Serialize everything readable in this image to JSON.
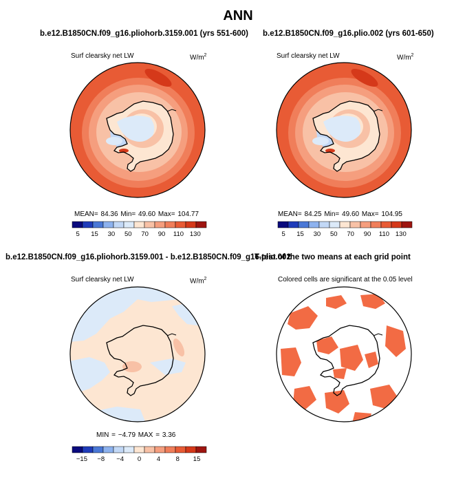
{
  "title": "ANN",
  "colors": {
    "c1": "#0a0a7d",
    "c2": "#1f3cba",
    "c3": "#4a78d6",
    "c4": "#8db2ee",
    "c5": "#c2d8f6",
    "c6": "#dceaf9",
    "c7": "#fde6d2",
    "c8": "#f8c1a6",
    "c9": "#f59e7e",
    "c10": "#f07e5a",
    "c11": "#e85b35",
    "c12": "#d5391a",
    "c13": "#9e1510",
    "sig": "#f26b44"
  },
  "panels": [
    {
      "title": "b.e12.B1850CN.f09_g16.pliohorb.3159.001 (yrs 551-600)",
      "variable": "Surf clearsky net LW",
      "units": "W/m",
      "units_sup": "2",
      "stats": "MEAN=  84.36   Min=   49.60   Max=  104.77",
      "colorbar_labels": [
        "5",
        "15",
        "30",
        "50",
        "70",
        "90",
        "110",
        "130"
      ]
    },
    {
      "title": "b.e12.B1850CN.f09_g16.plio.002 (yrs 601-650)",
      "variable": "Surf clearsky net LW",
      "units": "W/m",
      "units_sup": "2",
      "stats": "MEAN=  84.25   Min=   49.60   Max=  104.95",
      "colorbar_labels": [
        "5",
        "15",
        "30",
        "50",
        "70",
        "90",
        "110",
        "130"
      ]
    },
    {
      "title": "b.e12.B1850CN.f09_g16.pliohorb.3159.001 - b.e12.B1850CN.f09_g16.plio.002",
      "variable": "Surf clearsky net LW",
      "units": "W/m",
      "units_sup": "2",
      "stats": "MIN =  −4.79  MAX =    3.36",
      "colorbar_labels": [
        "−15",
        "−8",
        "−4",
        "0",
        "4",
        "8",
        "15"
      ]
    },
    {
      "title": "T-test of the two means at each grid point",
      "variable": "Colored cells are significant at the 0.05 level"
    }
  ]
}
